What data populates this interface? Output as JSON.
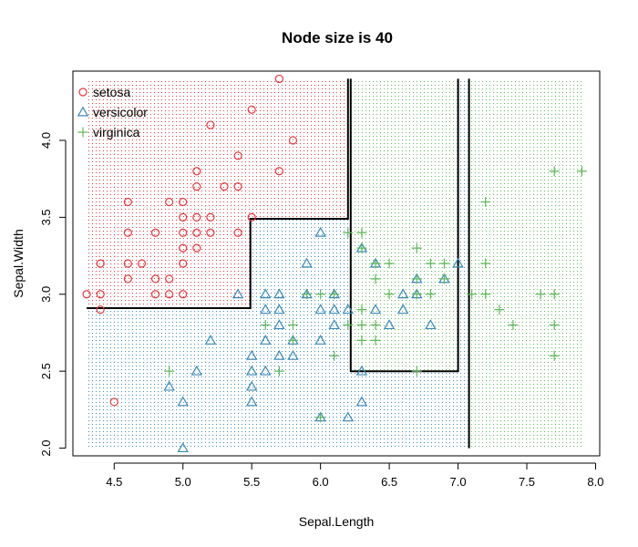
{
  "chart_data": {
    "type": "scatter",
    "title": "Node size is 40",
    "xlabel": "Sepal.Length",
    "ylabel": "Sepal.Width",
    "xlim": [
      4.2,
      8.03
    ],
    "ylim": [
      1.95,
      4.45
    ],
    "xticks": [
      "4.5",
      "5.0",
      "5.5",
      "6.0",
      "6.5",
      "7.0",
      "7.5",
      "8.0"
    ],
    "yticks": [
      "2.0",
      "2.5",
      "3.0",
      "3.5",
      "4.0"
    ],
    "grid": false,
    "legend": {
      "position": "top-left",
      "entries": [
        "setosa",
        "versicolor",
        "virginica"
      ]
    },
    "series": [
      {
        "name": "setosa",
        "marker": "circle",
        "color": "#e5383b",
        "points": [
          [
            4.3,
            3.0
          ],
          [
            4.4,
            3.2
          ],
          [
            4.4,
            3.0
          ],
          [
            4.4,
            2.9
          ],
          [
            4.5,
            2.3
          ],
          [
            4.6,
            3.6
          ],
          [
            4.6,
            3.4
          ],
          [
            4.6,
            3.2
          ],
          [
            4.6,
            3.1
          ],
          [
            4.7,
            3.2
          ],
          [
            4.8,
            3.4
          ],
          [
            4.8,
            3.1
          ],
          [
            4.8,
            3.0
          ],
          [
            4.9,
            3.6
          ],
          [
            4.9,
            3.1
          ],
          [
            4.9,
            3.0
          ],
          [
            5.0,
            3.6
          ],
          [
            5.0,
            3.5
          ],
          [
            5.0,
            3.4
          ],
          [
            5.0,
            3.3
          ],
          [
            5.0,
            3.2
          ],
          [
            5.0,
            3.0
          ],
          [
            5.1,
            3.8
          ],
          [
            5.1,
            3.7
          ],
          [
            5.1,
            3.5
          ],
          [
            5.1,
            3.4
          ],
          [
            5.1,
            3.3
          ],
          [
            5.2,
            4.1
          ],
          [
            5.2,
            3.5
          ],
          [
            5.2,
            3.4
          ],
          [
            5.3,
            3.7
          ],
          [
            5.4,
            3.9
          ],
          [
            5.4,
            3.7
          ],
          [
            5.4,
            3.4
          ],
          [
            5.5,
            4.2
          ],
          [
            5.5,
            3.5
          ],
          [
            5.7,
            4.4
          ],
          [
            5.7,
            3.8
          ],
          [
            5.8,
            4.0
          ]
        ]
      },
      {
        "name": "versicolor",
        "marker": "triangle",
        "color": "#3a8ab8",
        "points": [
          [
            4.9,
            2.4
          ],
          [
            5.0,
            2.3
          ],
          [
            5.0,
            2.0
          ],
          [
            5.1,
            2.5
          ],
          [
            5.2,
            2.7
          ],
          [
            5.4,
            3.0
          ],
          [
            5.5,
            2.6
          ],
          [
            5.5,
            2.5
          ],
          [
            5.5,
            2.4
          ],
          [
            5.5,
            2.3
          ],
          [
            5.6,
            3.0
          ],
          [
            5.6,
            2.9
          ],
          [
            5.6,
            2.7
          ],
          [
            5.6,
            2.5
          ],
          [
            5.7,
            3.0
          ],
          [
            5.7,
            2.9
          ],
          [
            5.7,
            2.8
          ],
          [
            5.7,
            2.6
          ],
          [
            5.8,
            2.7
          ],
          [
            5.8,
            2.6
          ],
          [
            5.9,
            3.2
          ],
          [
            5.9,
            3.0
          ],
          [
            6.0,
            3.4
          ],
          [
            6.0,
            2.9
          ],
          [
            6.0,
            2.7
          ],
          [
            6.0,
            2.2
          ],
          [
            6.1,
            3.0
          ],
          [
            6.1,
            2.9
          ],
          [
            6.1,
            2.8
          ],
          [
            6.2,
            2.9
          ],
          [
            6.2,
            2.2
          ],
          [
            6.3,
            3.3
          ],
          [
            6.3,
            2.5
          ],
          [
            6.3,
            2.3
          ],
          [
            6.4,
            3.2
          ],
          [
            6.4,
            2.9
          ],
          [
            6.5,
            2.8
          ],
          [
            6.6,
            3.0
          ],
          [
            6.6,
            2.9
          ],
          [
            6.7,
            3.1
          ],
          [
            6.7,
            3.0
          ],
          [
            6.8,
            2.8
          ],
          [
            6.9,
            3.1
          ],
          [
            7.0,
            3.2
          ]
        ]
      },
      {
        "name": "virginica",
        "marker": "plus",
        "color": "#5fb85a",
        "points": [
          [
            4.9,
            2.5
          ],
          [
            5.6,
            2.8
          ],
          [
            5.7,
            2.5
          ],
          [
            5.8,
            2.8
          ],
          [
            5.8,
            2.7
          ],
          [
            5.9,
            3.0
          ],
          [
            6.0,
            3.0
          ],
          [
            6.0,
            2.2
          ],
          [
            6.1,
            3.0
          ],
          [
            6.1,
            2.6
          ],
          [
            6.2,
            3.4
          ],
          [
            6.2,
            2.8
          ],
          [
            6.3,
            3.4
          ],
          [
            6.3,
            3.3
          ],
          [
            6.3,
            2.9
          ],
          [
            6.3,
            2.8
          ],
          [
            6.3,
            2.7
          ],
          [
            6.4,
            3.2
          ],
          [
            6.4,
            3.1
          ],
          [
            6.4,
            2.8
          ],
          [
            6.4,
            2.7
          ],
          [
            6.5,
            3.2
          ],
          [
            6.5,
            3.0
          ],
          [
            6.7,
            3.3
          ],
          [
            6.7,
            3.1
          ],
          [
            6.7,
            3.0
          ],
          [
            6.7,
            2.5
          ],
          [
            6.8,
            3.2
          ],
          [
            6.8,
            3.0
          ],
          [
            6.9,
            3.2
          ],
          [
            6.9,
            3.1
          ],
          [
            7.1,
            3.0
          ],
          [
            7.2,
            3.6
          ],
          [
            7.2,
            3.2
          ],
          [
            7.2,
            3.0
          ],
          [
            7.3,
            2.9
          ],
          [
            7.4,
            2.8
          ],
          [
            7.6,
            3.0
          ],
          [
            7.7,
            3.8
          ],
          [
            7.7,
            3.0
          ],
          [
            7.7,
            2.8
          ],
          [
            7.7,
            2.6
          ],
          [
            7.9,
            3.8
          ]
        ]
      }
    ],
    "regions": [
      {
        "class": "setosa",
        "color": "#e5383b",
        "polygon": [
          [
            4.3,
            4.4
          ],
          [
            6.21,
            4.4
          ],
          [
            6.21,
            3.49
          ],
          [
            5.49,
            3.49
          ],
          [
            5.49,
            2.91
          ],
          [
            4.3,
            2.91
          ]
        ]
      },
      {
        "class": "virginica",
        "color": "#5fb85a",
        "polygon": [
          [
            6.21,
            4.4
          ],
          [
            7.9,
            4.4
          ],
          [
            7.9,
            2.0
          ],
          [
            7.07,
            2.0
          ],
          [
            7.07,
            4.4
          ],
          [
            7.0,
            4.4
          ],
          [
            7.0,
            2.5
          ],
          [
            6.21,
            2.5
          ]
        ]
      },
      {
        "class": "versicolor",
        "color": "#3a8ab8",
        "polygon": [
          [
            4.3,
            2.91
          ],
          [
            5.49,
            2.91
          ],
          [
            5.49,
            3.49
          ],
          [
            6.21,
            3.49
          ],
          [
            6.21,
            2.5
          ],
          [
            7.0,
            2.5
          ],
          [
            7.0,
            4.4
          ],
          [
            7.07,
            4.4
          ],
          [
            7.07,
            2.0
          ],
          [
            4.3,
            2.0
          ]
        ]
      }
    ],
    "boundaries": [
      [
        [
          4.3,
          2.91
        ],
        [
          5.49,
          2.91
        ],
        [
          5.49,
          3.49
        ],
        [
          6.2,
          3.49
        ],
        [
          6.2,
          4.4
        ]
      ],
      [
        [
          6.22,
          4.4
        ],
        [
          6.22,
          2.5
        ],
        [
          7.0,
          2.5
        ],
        [
          7.0,
          4.4
        ]
      ],
      [
        [
          7.08,
          4.4
        ],
        [
          7.08,
          2.0
        ]
      ]
    ]
  }
}
